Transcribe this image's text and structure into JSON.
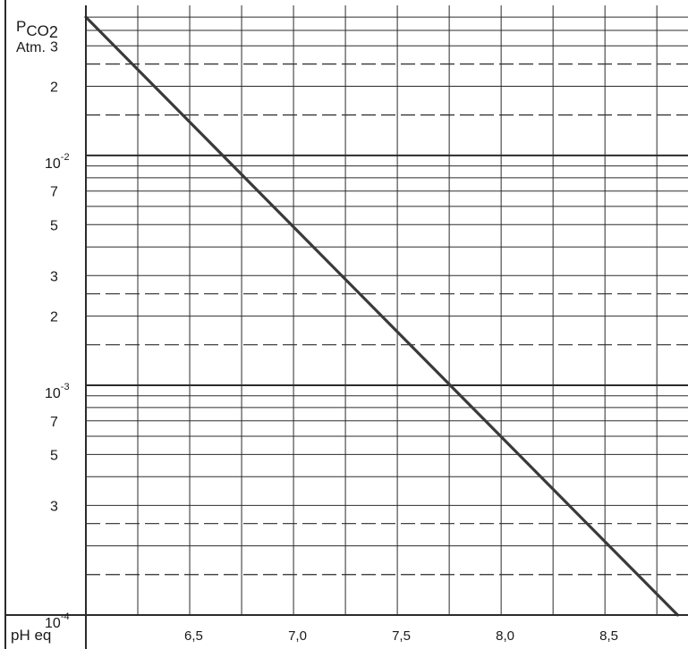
{
  "chart_data": {
    "type": "line",
    "title": "",
    "ylabel": {
      "main": "P",
      "sub": "CO",
      "sub2": "2",
      "unit": "Atm."
    },
    "xlabel": "pH eq",
    "x_scale": "linear",
    "y_scale": "log",
    "xlim": [
      6.0,
      8.9
    ],
    "ylim": [
      0.0001,
      0.045
    ],
    "x_ticks": [
      {
        "value": 6.5,
        "label": "6,5"
      },
      {
        "value": 7.0,
        "label": "7,0"
      },
      {
        "value": 7.5,
        "label": "7,5"
      },
      {
        "value": 8.0,
        "label": "8,0"
      },
      {
        "value": 8.5,
        "label": "8,5"
      }
    ],
    "y_ticks": [
      {
        "value": 0.03,
        "label": "3",
        "base": "",
        "exp": ""
      },
      {
        "value": 0.02,
        "label": "2",
        "base": "",
        "exp": ""
      },
      {
        "value": 0.01,
        "label": "",
        "base": "10",
        "exp": "-2"
      },
      {
        "value": 0.007,
        "label": "7",
        "base": "",
        "exp": ""
      },
      {
        "value": 0.005,
        "label": "5",
        "base": "",
        "exp": ""
      },
      {
        "value": 0.003,
        "label": "3",
        "base": "",
        "exp": ""
      },
      {
        "value": 0.002,
        "label": "2",
        "base": "",
        "exp": ""
      },
      {
        "value": 0.001,
        "label": "",
        "base": "10",
        "exp": "-3"
      },
      {
        "value": 0.0007,
        "label": "7",
        "base": "",
        "exp": ""
      },
      {
        "value": 0.0005,
        "label": "5",
        "base": "",
        "exp": ""
      },
      {
        "value": 0.0003,
        "label": "3",
        "base": "",
        "exp": ""
      },
      {
        "value": 0.0001,
        "label": "",
        "base": "10",
        "exp": "-4"
      }
    ],
    "solid_gridlines_y": [
      0.04,
      0.035,
      0.03,
      0.02,
      0.01,
      0.009,
      0.008,
      0.007,
      0.006,
      0.005,
      0.004,
      0.003,
      0.002,
      0.001,
      0.0009,
      0.0008,
      0.0007,
      0.0006,
      0.0005,
      0.0004,
      0.0003,
      0.0002
    ],
    "dashed_gridlines_y": [
      0.025,
      0.015,
      0.0025,
      0.0015,
      0.00025,
      0.00015
    ],
    "vertical_gridlines_x": [
      6.25,
      6.5,
      6.75,
      7.0,
      7.25,
      7.5,
      7.75,
      8.0,
      8.25,
      8.5,
      8.75
    ],
    "grid": true,
    "series": [
      {
        "points": [
          {
            "x": 6.0,
            "y": 0.04
          },
          {
            "x": 8.85,
            "y": 0.0001
          }
        ]
      }
    ],
    "colors": {
      "line": "#3a3a3a",
      "grid": "#2b2b2b",
      "text": "#1a1a1a",
      "background": "#ffffff"
    }
  }
}
